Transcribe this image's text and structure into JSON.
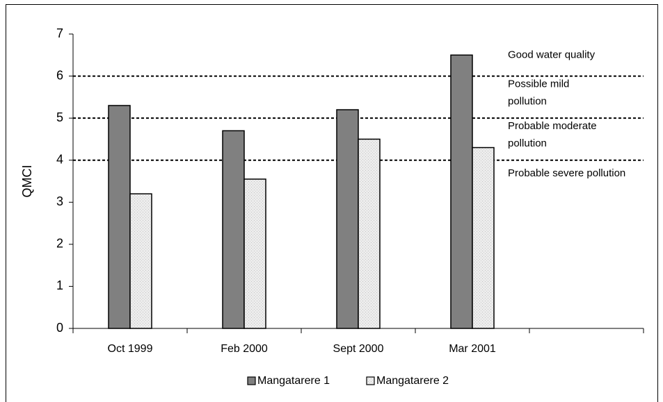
{
  "chart_data": {
    "type": "bar",
    "y_label": "QMCI",
    "categories": [
      "Oct 1999",
      "Feb 2000",
      "Sept 2000",
      "Mar 2001",
      null
    ],
    "series": [
      {
        "name": "Mangatarere 1",
        "color": "#808080",
        "values": [
          5.3,
          4.7,
          5.2,
          6.5,
          null
        ]
      },
      {
        "name": "Mangatarere 2",
        "color": "#e4e4e4",
        "values": [
          3.2,
          3.55,
          4.5,
          4.3,
          null
        ]
      }
    ],
    "ylim": [
      0,
      7
    ],
    "yticks": [
      0,
      1,
      2,
      3,
      4,
      5,
      6,
      7
    ],
    "thresholds": [
      6,
      5,
      4
    ],
    "annotations": [
      {
        "lines": [
          "Good water quality"
        ]
      },
      {
        "lines": [
          "Possible mild",
          "pollution"
        ]
      },
      {
        "lines": [
          "Probable moderate",
          "pollution"
        ]
      },
      {
        "lines": [
          "Probable severe pollution"
        ]
      }
    ],
    "legend": "bottom"
  }
}
